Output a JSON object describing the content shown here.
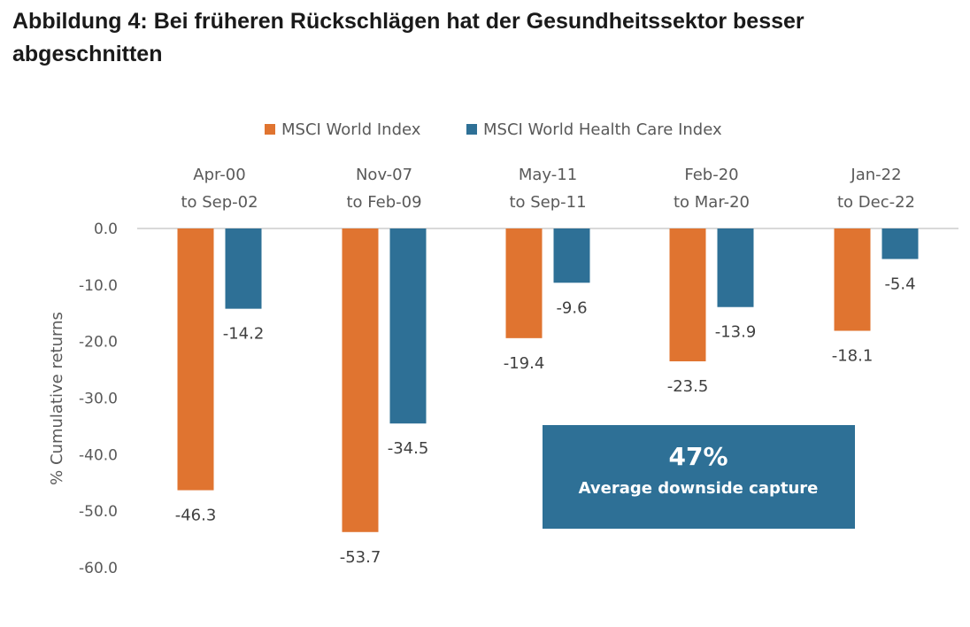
{
  "title": "Abbildung 4: Bei früheren Rückschlägen hat der Gesundheitssektor besser abgeschnitten",
  "colors": {
    "world": "#E07430",
    "health": "#2E7096",
    "axis": "#d9d9d9",
    "text": "#595959"
  },
  "chart_data": {
    "type": "bar",
    "ylabel": "% Cumulative returns",
    "ylim": [
      -60,
      0
    ],
    "yticks": [
      "0.0",
      "-10.0",
      "-20.0",
      "-30.0",
      "-40.0",
      "-50.0",
      "-60.0"
    ],
    "legend_position": "top",
    "categories": [
      [
        "Apr-00",
        "to Sep-02"
      ],
      [
        "Nov-07",
        "to Feb-09"
      ],
      [
        "May-11",
        "to Sep-11"
      ],
      [
        "Feb-20",
        "to Mar-20"
      ],
      [
        "Jan-22",
        "to Dec-22"
      ]
    ],
    "series": [
      {
        "name": "MSCI World Index",
        "values": [
          -46.3,
          -53.7,
          -19.4,
          -23.5,
          -18.1
        ],
        "labels": [
          "-46.3",
          "-53.7",
          "-19.4",
          "-23.5",
          "-18.1"
        ]
      },
      {
        "name": "MSCI World Health Care Index",
        "values": [
          -14.2,
          -34.5,
          -9.6,
          -13.9,
          -5.4
        ],
        "labels": [
          "-14.2",
          "-34.5",
          "-9.6",
          "-13.9",
          "-5.4"
        ]
      }
    ],
    "annotation": {
      "value": "47%",
      "text": "Average downside capture"
    }
  }
}
